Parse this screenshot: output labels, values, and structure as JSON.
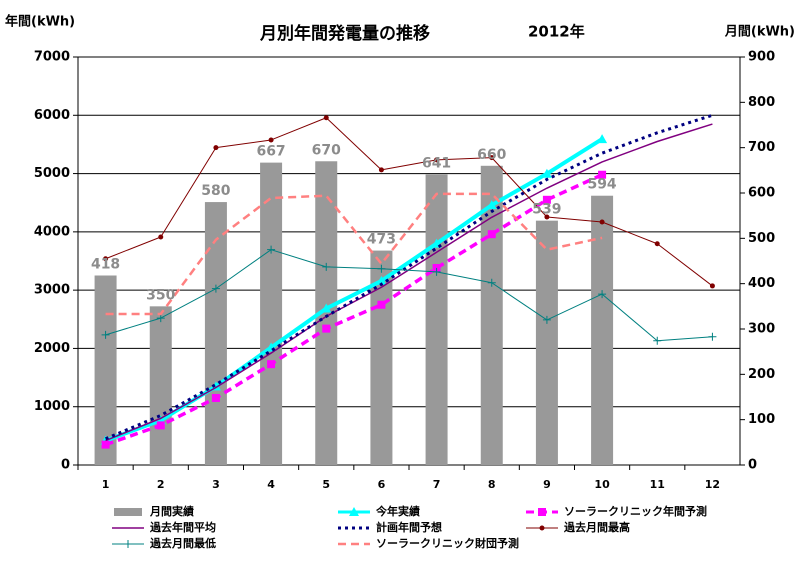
{
  "chart_data": {
    "type": "bar",
    "title": "月別年間発電量の推移",
    "subtitle": "2012年",
    "y_label": "年間(kWh)",
    "y2_label": "月間(kWh)",
    "categories": [
      "1",
      "2",
      "3",
      "4",
      "5",
      "6",
      "7",
      "8",
      "9",
      "10",
      "11",
      "12"
    ],
    "ylim": [
      0,
      7000
    ],
    "yticks": [
      0,
      1000,
      2000,
      3000,
      4000,
      5000,
      6000,
      7000
    ],
    "y2lim": [
      0,
      900
    ],
    "y2ticks": [
      0,
      100,
      200,
      300,
      400,
      500,
      600,
      700,
      800,
      900
    ],
    "grid": true,
    "legend": "bottom",
    "series": [
      {
        "name": "月間実績",
        "type": "bar",
        "axis": "y2",
        "color": "#999999",
        "values": [
          418,
          350,
          580,
          667,
          670,
          473,
          641,
          660,
          539,
          594,
          null,
          null
        ]
      },
      {
        "name": "今年実績",
        "type": "line",
        "color": "#00ffff",
        "marker": "triangle",
        "line_style": "solid",
        "width": 4,
        "values": [
          418,
          768,
          1348,
          2015,
          2685,
          3158,
          3799,
          4459,
          4998,
          5592,
          null,
          null
        ]
      },
      {
        "name": "ソーラークリニック年間予測",
        "type": "line",
        "color": "#ff00ff",
        "marker": "square",
        "line_style": "dashed",
        "width": 3.5,
        "values": [
          350,
          680,
          1150,
          1730,
          2340,
          2750,
          3380,
          3960,
          4550,
          4980,
          null,
          null
        ]
      },
      {
        "name": "過去年間平均",
        "type": "line",
        "color": "#800080",
        "marker": "none",
        "line_style": "solid",
        "width": 1.5,
        "values": [
          420,
          800,
          1330,
          1920,
          2550,
          3050,
          3650,
          4250,
          4750,
          5200,
          5550,
          5850
        ]
      },
      {
        "name": "計画年間予想",
        "type": "line",
        "color": "#000080",
        "marker": "none",
        "line_style": "dotted",
        "width": 3,
        "values": [
          450,
          850,
          1380,
          1960,
          2550,
          3100,
          3720,
          4350,
          4900,
          5350,
          5700,
          6000
        ]
      },
      {
        "name": "過去月間最高",
        "type": "line",
        "axis": "y2",
        "color": "#800000",
        "marker": "circle",
        "line_style": "solid",
        "width": 1,
        "values": [
          455,
          503,
          700,
          717,
          766,
          651,
          673,
          678,
          547,
          536,
          488,
          395
        ]
      },
      {
        "name": "過去月間最低",
        "type": "line",
        "axis": "y2",
        "color": "#008080",
        "marker": "plus",
        "line_style": "solid",
        "width": 1,
        "values": [
          287,
          324,
          389,
          475,
          437,
          433,
          426,
          402,
          320,
          377,
          274,
          283
        ]
      },
      {
        "name": "ソーラークリニック財団予測",
        "type": "line",
        "axis": "y2",
        "color": "#ff8080",
        "marker": "none",
        "line_style": "dashed",
        "width": 2.5,
        "values": [
          333,
          333,
          497,
          589,
          594,
          444,
          598,
          598,
          475,
          501,
          null,
          null
        ]
      }
    ]
  }
}
